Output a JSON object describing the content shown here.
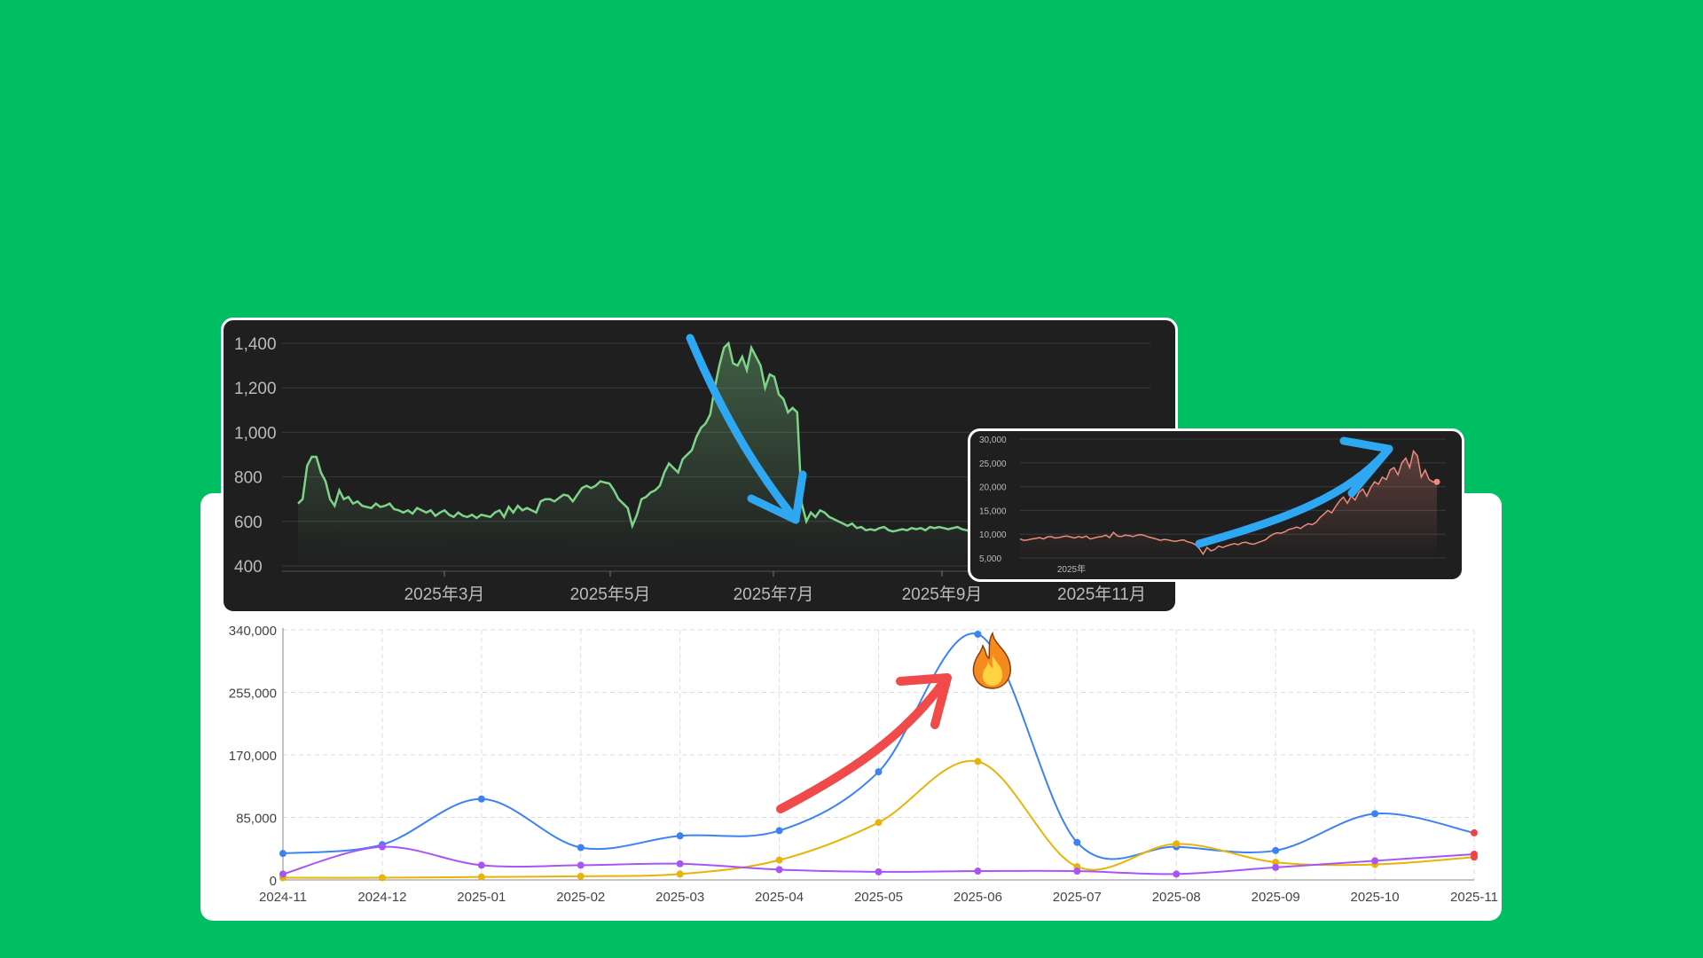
{
  "chart_data": [
    {
      "type": "line",
      "title": "",
      "xlabel": "",
      "ylabel": "",
      "categories": [
        "2024-11",
        "2024-12",
        "2025-01",
        "2025-02",
        "2025-03",
        "2025-04",
        "2025-05",
        "2025-06",
        "2025-07",
        "2025-08",
        "2025-09",
        "2025-10",
        "2025-11"
      ],
      "ylim": [
        0,
        340000
      ],
      "yticks": [
        0,
        85000,
        170000,
        255000,
        340000
      ],
      "ytick_labels": [
        "0",
        "85,000",
        "170,000",
        "255,000",
        "340,000"
      ],
      "grid": true,
      "series": [
        {
          "color": "#3b82f6",
          "values": [
            36000,
            48000,
            110000,
            44000,
            60000,
            67000,
            147000,
            334000,
            51000,
            45000,
            40000,
            90000,
            64000
          ]
        },
        {
          "color": "#eab308",
          "values": [
            3000,
            3000,
            4000,
            5000,
            8000,
            27000,
            78000,
            161000,
            18000,
            49000,
            24000,
            21000,
            31000
          ]
        },
        {
          "color": "#a855f7",
          "values": [
            8000,
            45000,
            20000,
            20000,
            22000,
            14000,
            11000,
            12000,
            12000,
            8000,
            17000,
            26000,
            35000
          ]
        }
      ],
      "last_point_color": "#ef4444"
    },
    {
      "type": "area",
      "title": "",
      "ylim": [
        400,
        1400
      ],
      "yticks": [
        400,
        600,
        800,
        1000,
        1200,
        1400
      ],
      "ytick_labels": [
        "400",
        "600",
        "800",
        "1,000",
        "1,200",
        "1,400"
      ],
      "xtick_labels": [
        "2025年3月",
        "2025年5月",
        "2025年7月",
        "2025年9月",
        "2025年11月"
      ],
      "grid": true,
      "color": "#7ed38a",
      "values": [
        680,
        700,
        850,
        890,
        890,
        820,
        780,
        700,
        670,
        740,
        700,
        710,
        680,
        690,
        670,
        665,
        660,
        680,
        665,
        670,
        680,
        655,
        650,
        640,
        650,
        635,
        660,
        650,
        640,
        650,
        625,
        640,
        650,
        630,
        620,
        640,
        625,
        620,
        630,
        615,
        630,
        625,
        620,
        640,
        650,
        620,
        665,
        640,
        670,
        650,
        660,
        650,
        640,
        690,
        700,
        700,
        690,
        705,
        720,
        715,
        690,
        720,
        750,
        760,
        750,
        760,
        780,
        775,
        770,
        740,
        700,
        680,
        660,
        580,
        630,
        700,
        710,
        730,
        740,
        760,
        820,
        860,
        840,
        820,
        880,
        900,
        920,
        980,
        1020,
        1040,
        1080,
        1200,
        1300,
        1380,
        1400,
        1310,
        1300,
        1340,
        1280,
        1380,
        1340,
        1300,
        1200,
        1260,
        1250,
        1170,
        1150,
        1090,
        1110,
        1090,
        680,
        600,
        640,
        620,
        650,
        640,
        620,
        610,
        600,
        590,
        580,
        590,
        570,
        575,
        560,
        565,
        560,
        570,
        575,
        560,
        555,
        560,
        565,
        560,
        570,
        565,
        570,
        560,
        575,
        570,
        575,
        570,
        565,
        570,
        575,
        565,
        560,
        555,
        560,
        550,
        555,
        545,
        540,
        550,
        540,
        535,
        530,
        530,
        540,
        535,
        530,
        525,
        520,
        525,
        530,
        520,
        530,
        525,
        535,
        520,
        530,
        540,
        535,
        530,
        525,
        520,
        530,
        520,
        515
      ]
    },
    {
      "type": "area",
      "title": "",
      "ylim": [
        5000,
        30000
      ],
      "yticks": [
        5000,
        10000,
        15000,
        20000,
        25000,
        30000
      ],
      "ytick_labels": [
        "5,000",
        "10,000",
        "15,000",
        "20,000",
        "25,000",
        "30,000"
      ],
      "xtick_labels": [
        "2025年"
      ],
      "grid": true,
      "color": "#f08a7a",
      "values": [
        9000,
        8700,
        8800,
        9000,
        9100,
        9300,
        9000,
        9400,
        9500,
        9200,
        9300,
        9500,
        9600,
        9400,
        9200,
        9500,
        9300,
        9600,
        9000,
        9200,
        9400,
        9500,
        9800,
        9300,
        10400,
        9600,
        9500,
        9800,
        9700,
        9500,
        9800,
        9900,
        9700,
        9400,
        9200,
        9000,
        8700,
        8900,
        8800,
        8600,
        8500,
        8700,
        8800,
        8400,
        8200,
        7800,
        7000,
        5800,
        7200,
        6500,
        6800,
        7500,
        7200,
        7500,
        7800,
        8000,
        7800,
        8200,
        8300,
        8000,
        7900,
        8200,
        8500,
        8800,
        9500,
        10000,
        10300,
        10200,
        10500,
        11000,
        11200,
        11500,
        11200,
        11800,
        12200,
        12000,
        12500,
        13500,
        14200,
        15000,
        14500,
        15800,
        17000,
        17800,
        16500,
        18000,
        17200,
        18800,
        19500,
        18000,
        19800,
        21000,
        20500,
        22000,
        21500,
        23500,
        24000,
        22500,
        25000,
        26000,
        24000,
        27500,
        26500,
        22000,
        23500,
        21500,
        21000,
        21000
      ]
    }
  ]
}
